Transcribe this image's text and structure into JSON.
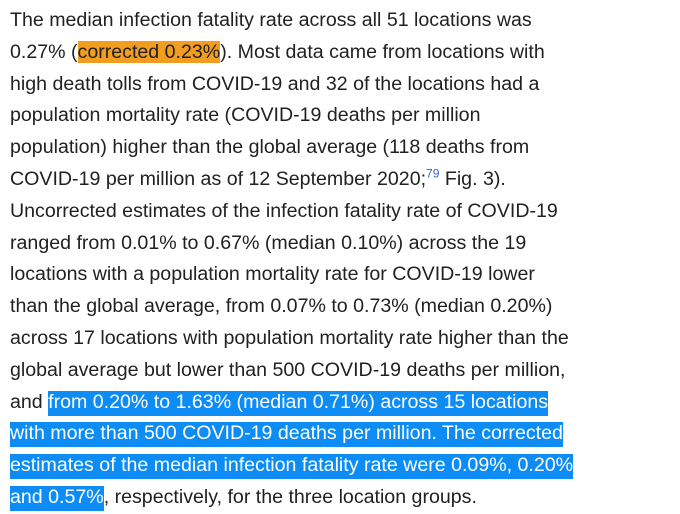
{
  "colors": {
    "text": "#202122",
    "orange_highlight": "#f39c22",
    "selection_blue": "#0e8cf5",
    "selection_text": "#ffffff",
    "link": "#3366cc"
  },
  "paragraph": {
    "l1": "The median infection fatality rate across all 51 locations was",
    "l2_pre": "0.27% (",
    "l2_highlight": "corrected 0.23%",
    "l2_post": "). Most data came from locations with",
    "l3": "high death tolls from COVID-19 and 32 of the locations had a",
    "l4": "population mortality rate (COVID-19 deaths per million",
    "l5": "population) higher than the global average (118 deaths from",
    "l6_pre": "COVID-19 per million as of 12 September 2020;",
    "l6_ref": "79",
    "l6_post": " Fig. 3).",
    "l7": "Uncorrected estimates of the infection fatality rate of COVID-19",
    "l8": "ranged from 0.01% to 0.67% (median 0.10%) across the 19",
    "l9": "locations with a population mortality rate for COVID-19 lower",
    "l10": "than the global average, from 0.07% to 0.73% (median 0.20%)",
    "l11": "across 17 locations with population mortality rate higher than the",
    "l12": "global average but lower than 500 COVID-19 deaths per million,",
    "l13_pre": "and ",
    "l13_sel": "from 0.20% to 1.63% (median 0.71%) across 15 locations",
    "l14_sel": "with more than 500 COVID-19 deaths per million. The corrected",
    "l15_sel": "estimates of the median infection fatality rate were 0.09%, 0.20%",
    "l16_sel": "and 0.57%",
    "l16_post": ", respectively, for the three location groups."
  }
}
